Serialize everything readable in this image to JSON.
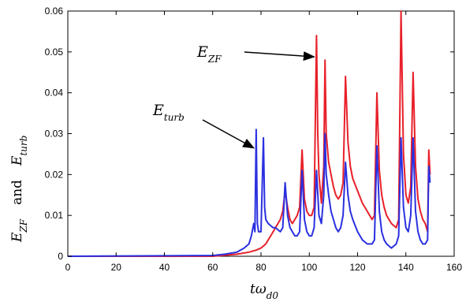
{
  "chart_data": {
    "type": "line",
    "title": "",
    "xlabel": {
      "main": "tω",
      "sub": "d0"
    },
    "ylabel": {
      "part1_main": "E",
      "part1_sub": "ZF",
      "and": "and",
      "part2_main": "E",
      "part2_sub": "turb"
    },
    "xlim": [
      0,
      160
    ],
    "ylim": [
      0,
      0.06
    ],
    "x_ticks": [
      "0",
      "20",
      "40",
      "60",
      "80",
      "100",
      "120",
      "140",
      "160"
    ],
    "y_ticks": [
      "0",
      "0.01",
      "0.02",
      "0.03",
      "0.04",
      "0.05",
      "0.06"
    ],
    "grid": false,
    "series": [
      {
        "color": "#e8202a",
        "points": [
          [
            0,
            0
          ],
          [
            60,
            0
          ],
          [
            70,
            0.0005
          ],
          [
            75,
            0.001
          ],
          [
            78,
            0.0015
          ],
          [
            80,
            0.002
          ],
          [
            82,
            0.003
          ],
          [
            84,
            0.005
          ],
          [
            86,
            0.007
          ],
          [
            88,
            0.009
          ],
          [
            89,
            0.011
          ],
          [
            90,
            0.016
          ],
          [
            91,
            0.012
          ],
          [
            92,
            0.009
          ],
          [
            93,
            0.008
          ],
          [
            94,
            0.009
          ],
          [
            95,
            0.01
          ],
          [
            96,
            0.012
          ],
          [
            97,
            0.026
          ],
          [
            98,
            0.014
          ],
          [
            99,
            0.011
          ],
          [
            100,
            0.01
          ],
          [
            101,
            0.01
          ],
          [
            102,
            0.012
          ],
          [
            103,
            0.054
          ],
          [
            103.5,
            0.03
          ],
          [
            104,
            0.02
          ],
          [
            105,
            0.013
          ],
          [
            106,
            0.022
          ],
          [
            106.5,
            0.048
          ],
          [
            107,
            0.03
          ],
          [
            108,
            0.023
          ],
          [
            109,
            0.02
          ],
          [
            110,
            0.017
          ],
          [
            111,
            0.015
          ],
          [
            112,
            0.014
          ],
          [
            113,
            0.015
          ],
          [
            114,
            0.018
          ],
          [
            115,
            0.044
          ],
          [
            116,
            0.028
          ],
          [
            117,
            0.022
          ],
          [
            118,
            0.019
          ],
          [
            120,
            0.016
          ],
          [
            122,
            0.013
          ],
          [
            124,
            0.011
          ],
          [
            126,
            0.009
          ],
          [
            127,
            0.01
          ],
          [
            128,
            0.04
          ],
          [
            129,
            0.021
          ],
          [
            130,
            0.015
          ],
          [
            131,
            0.012
          ],
          [
            132,
            0.01
          ],
          [
            134,
            0.008
          ],
          [
            136,
            0.007
          ],
          [
            137,
            0.009
          ],
          [
            138,
            0.06
          ],
          [
            139,
            0.025
          ],
          [
            140,
            0.015
          ],
          [
            141,
            0.013
          ],
          [
            142,
            0.017
          ],
          [
            143,
            0.045
          ],
          [
            144,
            0.022
          ],
          [
            145,
            0.014
          ],
          [
            146,
            0.011
          ],
          [
            147,
            0.009
          ],
          [
            148,
            0.008
          ],
          [
            149,
            0.006
          ],
          [
            149.5,
            0.026
          ],
          [
            150,
            0.02
          ]
        ]
      },
      {
        "color": "#2a30e0",
        "points": [
          [
            0,
            0
          ],
          [
            60,
            0.0002
          ],
          [
            65,
            0.0005
          ],
          [
            70,
            0.001
          ],
          [
            73,
            0.002
          ],
          [
            75,
            0.003
          ],
          [
            76,
            0.005
          ],
          [
            77,
            0.008
          ],
          [
            77.5,
            0.006
          ],
          [
            78,
            0.031
          ],
          [
            78.5,
            0.008
          ],
          [
            79,
            0.006
          ],
          [
            80,
            0.006
          ],
          [
            81,
            0.029
          ],
          [
            81.5,
            0.012
          ],
          [
            82,
            0.009
          ],
          [
            83,
            0.008
          ],
          [
            85,
            0.007
          ],
          [
            86,
            0.007
          ],
          [
            88,
            0.006
          ],
          [
            89,
            0.007
          ],
          [
            90,
            0.018
          ],
          [
            91,
            0.01
          ],
          [
            92,
            0.007
          ],
          [
            93,
            0.006
          ],
          [
            94,
            0.005
          ],
          [
            95,
            0.005
          ],
          [
            96,
            0.006
          ],
          [
            97,
            0.021
          ],
          [
            98,
            0.009
          ],
          [
            99,
            0.006
          ],
          [
            100,
            0.005
          ],
          [
            101,
            0.005
          ],
          [
            102,
            0.007
          ],
          [
            103,
            0.021
          ],
          [
            104,
            0.01
          ],
          [
            105,
            0.008
          ],
          [
            106,
            0.015
          ],
          [
            106.5,
            0.03
          ],
          [
            107,
            0.02
          ],
          [
            108,
            0.015
          ],
          [
            109,
            0.011
          ],
          [
            110,
            0.009
          ],
          [
            111,
            0.007
          ],
          [
            112,
            0.006
          ],
          [
            113,
            0.007
          ],
          [
            114,
            0.01
          ],
          [
            115,
            0.023
          ],
          [
            116,
            0.015
          ],
          [
            117,
            0.011
          ],
          [
            118,
            0.009
          ],
          [
            120,
            0.006
          ],
          [
            122,
            0.004
          ],
          [
            124,
            0.003
          ],
          [
            126,
            0.003
          ],
          [
            127,
            0.004
          ],
          [
            128,
            0.027
          ],
          [
            129,
            0.011
          ],
          [
            130,
            0.006
          ],
          [
            131,
            0.004
          ],
          [
            132,
            0.003
          ],
          [
            134,
            0.002
          ],
          [
            136,
            0.003
          ],
          [
            137,
            0.005
          ],
          [
            138,
            0.029
          ],
          [
            139,
            0.012
          ],
          [
            140,
            0.007
          ],
          [
            141,
            0.006
          ],
          [
            142,
            0.01
          ],
          [
            143,
            0.029
          ],
          [
            144,
            0.011
          ],
          [
            145,
            0.006
          ],
          [
            146,
            0.004
          ],
          [
            147,
            0.003
          ],
          [
            148,
            0.003
          ],
          [
            149,
            0.004
          ],
          [
            149.5,
            0.022
          ],
          [
            150,
            0.018
          ]
        ]
      }
    ],
    "annotations": [
      {
        "main": "E",
        "sub": "ZF",
        "x_data": 102,
        "y_data": 0.0488
      },
      {
        "main": "E",
        "sub": "turb",
        "x_data": 77,
        "y_data": 0.0265
      }
    ]
  }
}
